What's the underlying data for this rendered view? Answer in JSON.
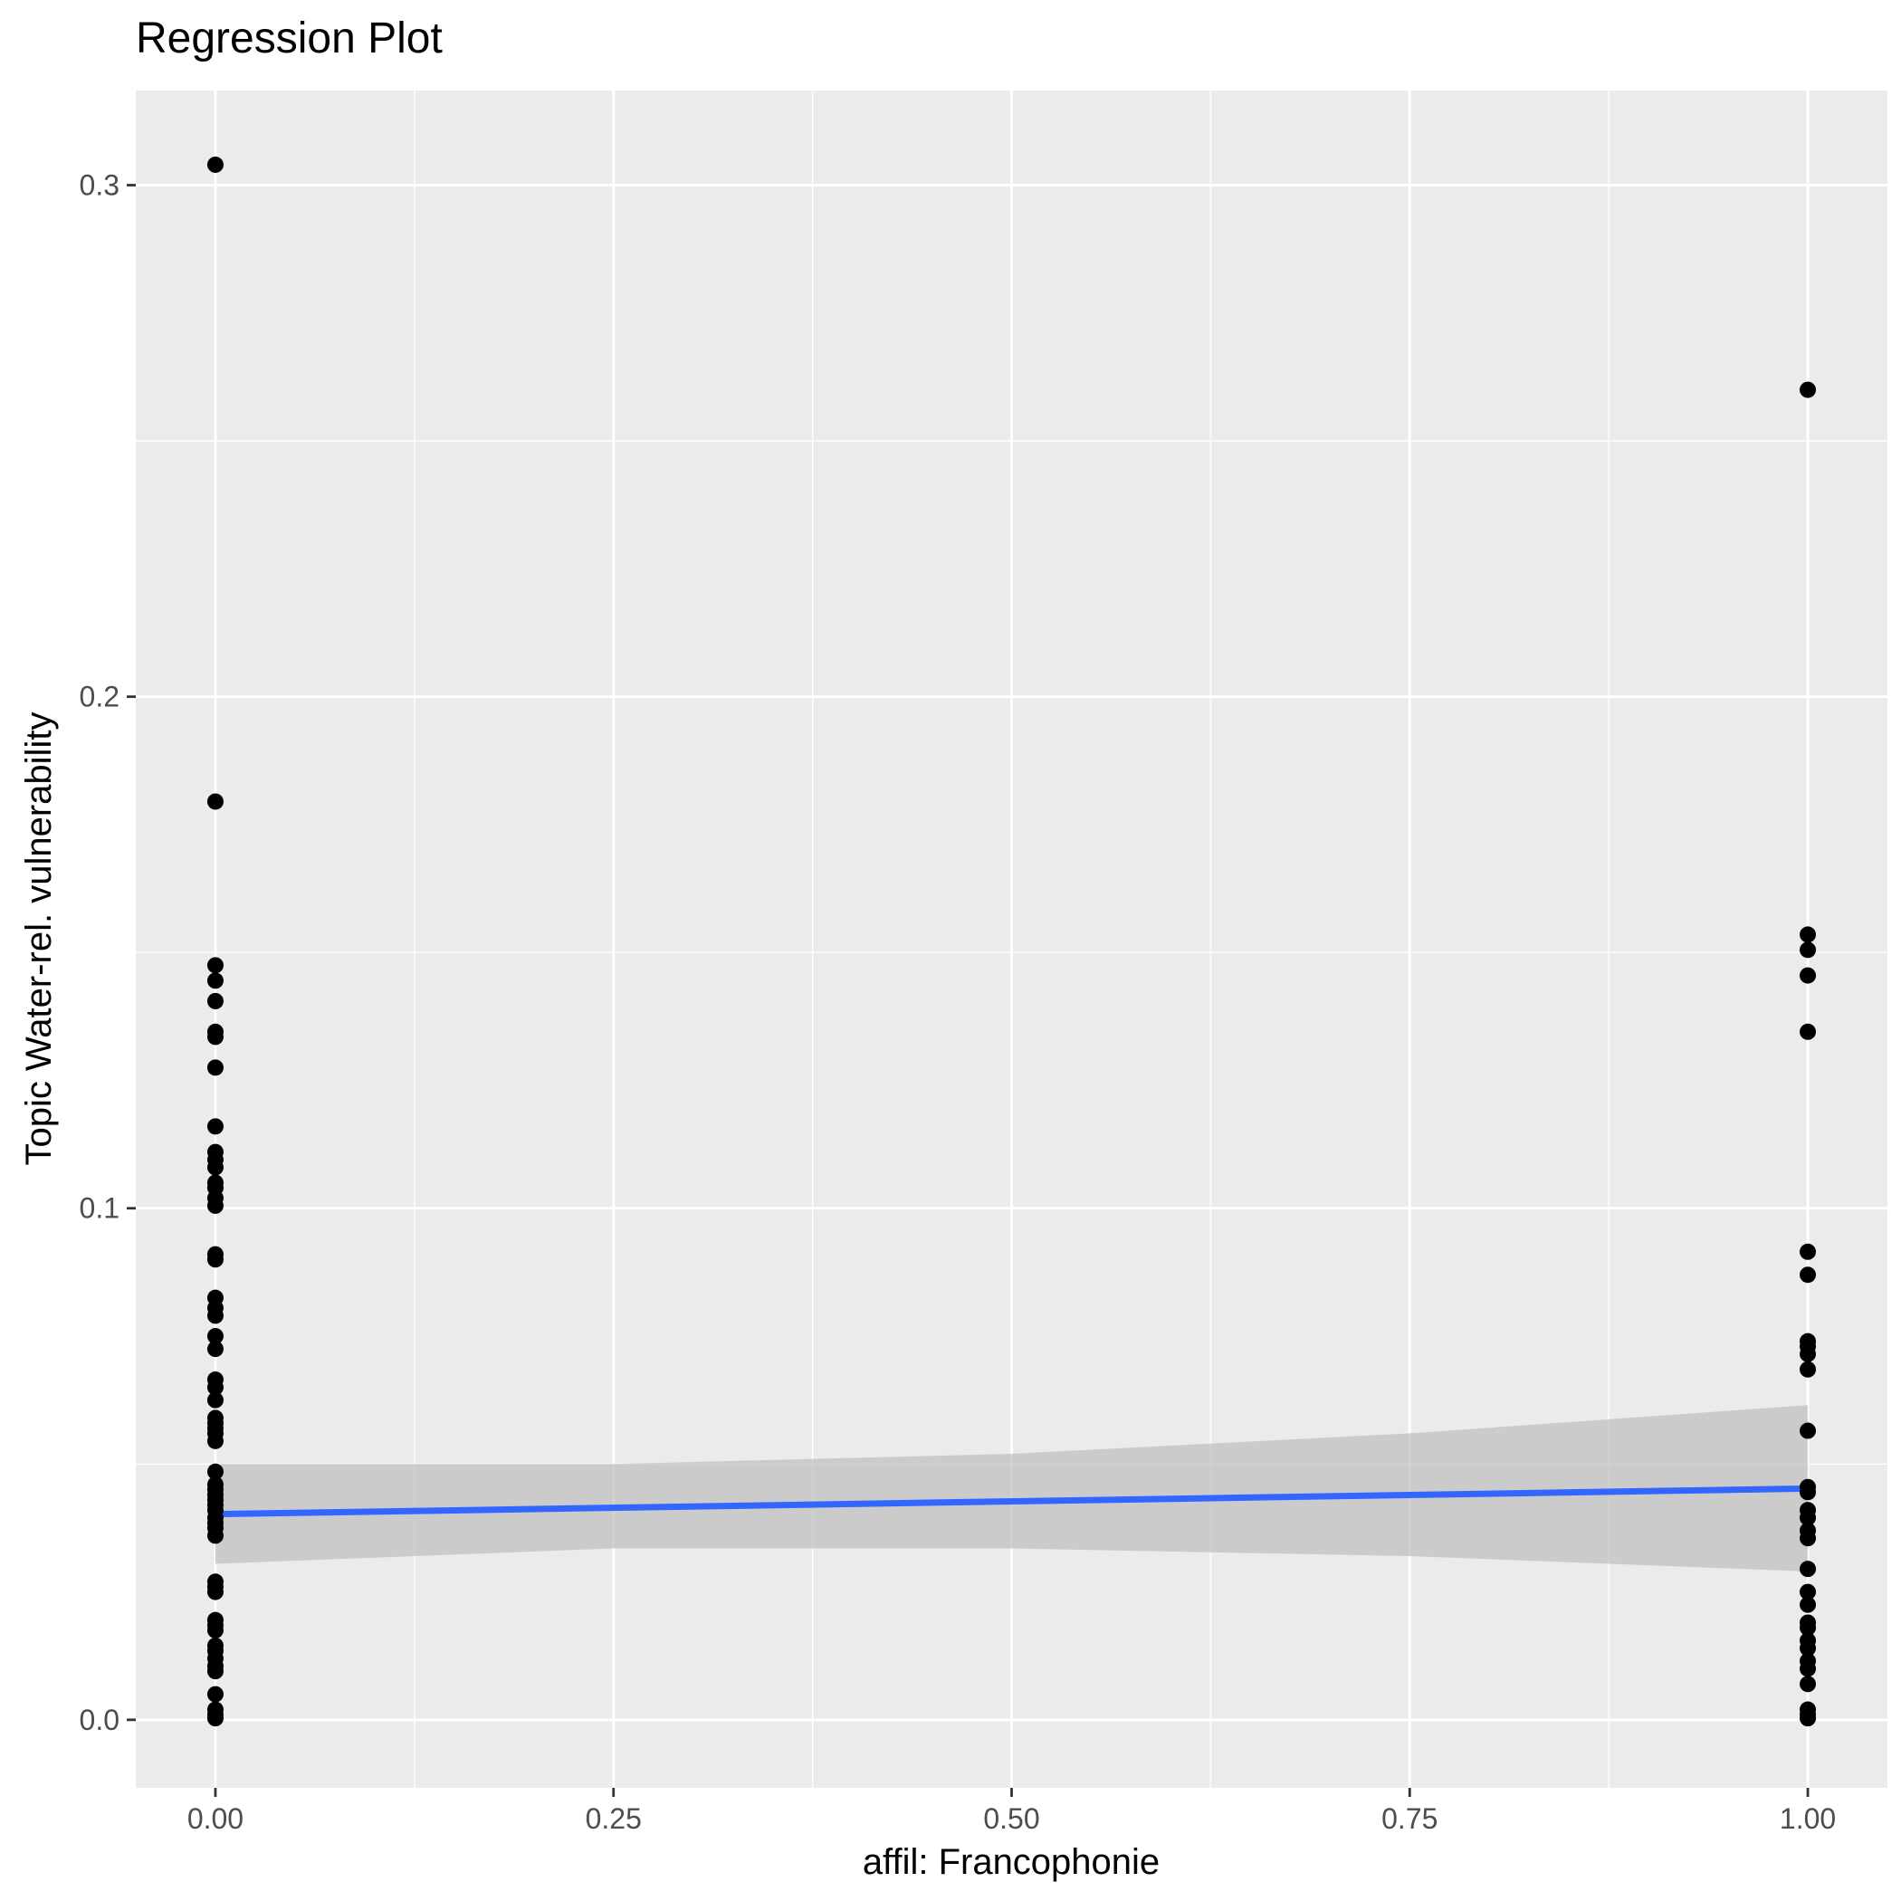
{
  "chart_data": {
    "type": "scatter",
    "title": "Regression Plot",
    "xlabel": "affil: Francophonie",
    "ylabel": "Topic Water-rel. vulnerability",
    "xlim": [
      -0.05,
      1.05
    ],
    "ylim": [
      -0.0133,
      0.3185
    ],
    "x_ticks": [
      0.0,
      0.25,
      0.5,
      0.75,
      1.0
    ],
    "x_tick_labels": [
      "0.00",
      "0.25",
      "0.50",
      "0.75",
      "1.00"
    ],
    "y_ticks": [
      0.0,
      0.1,
      0.2,
      0.3
    ],
    "y_tick_labels": [
      "0.0",
      "0.1",
      "0.2",
      "0.3"
    ],
    "grid": true,
    "legend": "none",
    "colors": {
      "panel": "#EBEBEB",
      "grid": "#FFFFFF",
      "points": "#000000",
      "fit_line": "#3366FF",
      "ribbon": "#BEBEBE",
      "axis_text": "#4D4D4D",
      "tick": "#333333",
      "title": "#000000"
    },
    "points": [
      {
        "x": 0,
        "y": 0.304
      },
      {
        "x": 0,
        "y": 0.1795
      },
      {
        "x": 0,
        "y": 0.1475
      },
      {
        "x": 0,
        "y": 0.1445
      },
      {
        "x": 0,
        "y": 0.1405
      },
      {
        "x": 0,
        "y": 0.1345
      },
      {
        "x": 0,
        "y": 0.1335
      },
      {
        "x": 0,
        "y": 0.1275
      },
      {
        "x": 0,
        "y": 0.116
      },
      {
        "x": 0,
        "y": 0.111
      },
      {
        "x": 0,
        "y": 0.1095
      },
      {
        "x": 0,
        "y": 0.108
      },
      {
        "x": 0,
        "y": 0.105
      },
      {
        "x": 0,
        "y": 0.104
      },
      {
        "x": 0,
        "y": 0.102
      },
      {
        "x": 0,
        "y": 0.1005
      },
      {
        "x": 0,
        "y": 0.091
      },
      {
        "x": 0,
        "y": 0.09
      },
      {
        "x": 0,
        "y": 0.0825
      },
      {
        "x": 0,
        "y": 0.0805
      },
      {
        "x": 0,
        "y": 0.079
      },
      {
        "x": 0,
        "y": 0.075
      },
      {
        "x": 0,
        "y": 0.0725
      },
      {
        "x": 0,
        "y": 0.0665
      },
      {
        "x": 0,
        "y": 0.065
      },
      {
        "x": 0,
        "y": 0.0625
      },
      {
        "x": 0,
        "y": 0.059
      },
      {
        "x": 0,
        "y": 0.058
      },
      {
        "x": 0,
        "y": 0.057
      },
      {
        "x": 0,
        "y": 0.056
      },
      {
        "x": 0,
        "y": 0.0545
      },
      {
        "x": 0,
        "y": 0.0485
      },
      {
        "x": 0,
        "y": 0.046
      },
      {
        "x": 0,
        "y": 0.045
      },
      {
        "x": 0,
        "y": 0.044
      },
      {
        "x": 0,
        "y": 0.043
      },
      {
        "x": 0,
        "y": 0.042
      },
      {
        "x": 0,
        "y": 0.041
      },
      {
        "x": 0,
        "y": 0.0395
      },
      {
        "x": 0,
        "y": 0.0385
      },
      {
        "x": 0,
        "y": 0.0375
      },
      {
        "x": 0,
        "y": 0.036
      },
      {
        "x": 0,
        "y": 0.027
      },
      {
        "x": 0,
        "y": 0.026
      },
      {
        "x": 0,
        "y": 0.025
      },
      {
        "x": 0,
        "y": 0.0195
      },
      {
        "x": 0,
        "y": 0.0185
      },
      {
        "x": 0,
        "y": 0.0175
      },
      {
        "x": 0,
        "y": 0.0145
      },
      {
        "x": 0,
        "y": 0.0135
      },
      {
        "x": 0,
        "y": 0.012
      },
      {
        "x": 0,
        "y": 0.0105
      },
      {
        "x": 0,
        "y": 0.0095
      },
      {
        "x": 0,
        "y": 0.005
      },
      {
        "x": 0,
        "y": 0.002
      },
      {
        "x": 0,
        "y": 0.001
      },
      {
        "x": 0,
        "y": 0.0003
      },
      {
        "x": 1,
        "y": 0.26
      },
      {
        "x": 1,
        "y": 0.1535
      },
      {
        "x": 1,
        "y": 0.1505
      },
      {
        "x": 1,
        "y": 0.1455
      },
      {
        "x": 1,
        "y": 0.1345
      },
      {
        "x": 1,
        "y": 0.0915
      },
      {
        "x": 1,
        "y": 0.087
      },
      {
        "x": 1,
        "y": 0.074
      },
      {
        "x": 1,
        "y": 0.073
      },
      {
        "x": 1,
        "y": 0.0715
      },
      {
        "x": 1,
        "y": 0.0685
      },
      {
        "x": 1,
        "y": 0.0565
      },
      {
        "x": 1,
        "y": 0.0455
      },
      {
        "x": 1,
        "y": 0.0445
      },
      {
        "x": 1,
        "y": 0.041
      },
      {
        "x": 1,
        "y": 0.0395
      },
      {
        "x": 1,
        "y": 0.037
      },
      {
        "x": 1,
        "y": 0.0355
      },
      {
        "x": 1,
        "y": 0.0295
      },
      {
        "x": 1,
        "y": 0.025
      },
      {
        "x": 1,
        "y": 0.0225
      },
      {
        "x": 1,
        "y": 0.019
      },
      {
        "x": 1,
        "y": 0.018
      },
      {
        "x": 1,
        "y": 0.0155
      },
      {
        "x": 1,
        "y": 0.014
      },
      {
        "x": 1,
        "y": 0.0115
      },
      {
        "x": 1,
        "y": 0.01
      },
      {
        "x": 1,
        "y": 0.007
      },
      {
        "x": 1,
        "y": 0.002
      },
      {
        "x": 1,
        "y": 0.001
      },
      {
        "x": 1,
        "y": 0.0003
      }
    ],
    "fit_line": {
      "method": "lm",
      "x": [
        0,
        1
      ],
      "y": [
        0.0402,
        0.0452
      ]
    },
    "confidence_band": {
      "x": [
        0,
        0.25,
        0.5,
        0.75,
        1.0
      ],
      "lower": [
        0.0305,
        0.0335,
        0.0335,
        0.032,
        0.029
      ],
      "upper": [
        0.05,
        0.05,
        0.052,
        0.056,
        0.0615
      ]
    }
  }
}
